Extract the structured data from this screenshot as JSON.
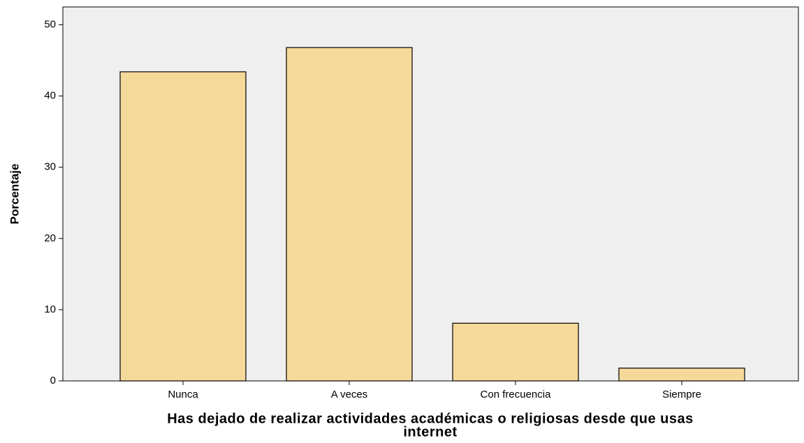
{
  "chart_data": {
    "type": "bar",
    "xlabel": [
      "Has dejado de realizar actividades académicas o religiosas desde que usas",
      "internet"
    ],
    "ylabel": "Porcentaje",
    "categories": [
      "Nunca",
      "A veces",
      "Con frecuencia",
      "Siempre"
    ],
    "values": [
      43.4,
      46.8,
      8.1,
      1.8
    ],
    "color": "#f5d99a",
    "ylim": [
      0,
      52.5
    ],
    "yticks": [
      0,
      10,
      20,
      30,
      40,
      50
    ]
  }
}
